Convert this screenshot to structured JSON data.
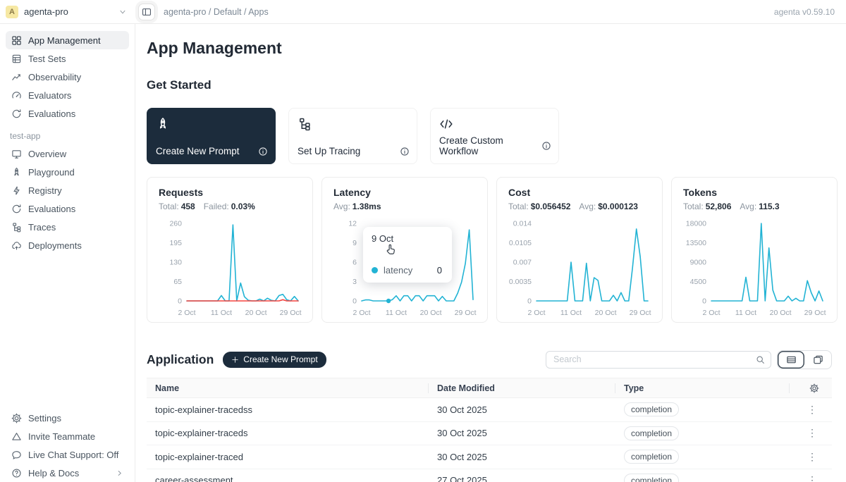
{
  "topbar": {
    "avatar_letter": "A",
    "workspace": "agenta-pro",
    "breadcrumb": "agenta-pro / Default / Apps",
    "version": "agenta v0.59.10"
  },
  "sidebar": {
    "main_items": [
      {
        "label": "App Management",
        "icon": "grid",
        "active": true
      },
      {
        "label": "Test Sets",
        "icon": "testsets",
        "active": false
      },
      {
        "label": "Observability",
        "icon": "observability",
        "active": false
      },
      {
        "label": "Evaluators",
        "icon": "gauge",
        "active": false
      },
      {
        "label": "Evaluations",
        "icon": "refresh",
        "active": false
      }
    ],
    "section_label": "test-app",
    "app_items": [
      {
        "label": "Overview",
        "icon": "desktop",
        "active": false
      },
      {
        "label": "Playground",
        "icon": "rocket",
        "active": false
      },
      {
        "label": "Registry",
        "icon": "lightning",
        "active": false
      },
      {
        "label": "Evaluations",
        "icon": "refresh",
        "active": false
      },
      {
        "label": "Traces",
        "icon": "tree",
        "active": false
      },
      {
        "label": "Deployments",
        "icon": "cloud",
        "active": false
      }
    ],
    "bottom_items": [
      {
        "label": "Settings",
        "icon": "gear",
        "active": false
      },
      {
        "label": "Invite Teammate",
        "icon": "triangle",
        "active": false
      },
      {
        "label": "Live Chat Support: Off",
        "icon": "chat",
        "active": false
      },
      {
        "label": "Help & Docs",
        "icon": "help",
        "active": false,
        "chevron": true
      }
    ]
  },
  "main": {
    "page_title": "App Management",
    "get_started": {
      "title": "Get Started",
      "cards": [
        {
          "label": "Create New Prompt",
          "icon": "rocket",
          "dark": true
        },
        {
          "label": "Set Up Tracing",
          "icon": "tree",
          "dark": false
        },
        {
          "label": "Create Custom Workflow",
          "icon": "code",
          "dark": false
        }
      ]
    },
    "application": {
      "title": "Application",
      "create_button_label": "Create New Prompt",
      "search_placeholder": "Search",
      "table": {
        "columns": [
          "Name",
          "Date Modified",
          "Type"
        ],
        "rows": [
          {
            "name": "topic-explainer-tracedss",
            "date_modified": "30 Oct 2025",
            "type": "completion"
          },
          {
            "name": "topic-explainer-traceds",
            "date_modified": "30 Oct 2025",
            "type": "completion"
          },
          {
            "name": "topic-explainer-traced",
            "date_modified": "30 Oct 2025",
            "type": "completion"
          },
          {
            "name": "career-assessment",
            "date_modified": "27 Oct 2025",
            "type": "completion"
          }
        ]
      }
    }
  },
  "tooltip": {
    "date": "9 Oct",
    "series_label": "latency",
    "value": "0"
  },
  "colors": {
    "accent_cyan": "#22b3d4",
    "failed_red": "#f5433e",
    "dark_navy": "#1c2c3c"
  },
  "chart_data": [
    {
      "type": "line",
      "title": "Requests",
      "stats": [
        {
          "label": "Total:",
          "value": "458"
        },
        {
          "label": "Failed:",
          "value": "0.03%"
        }
      ],
      "x": [
        "2 Oct",
        "3 Oct",
        "4 Oct",
        "5 Oct",
        "6 Oct",
        "7 Oct",
        "8 Oct",
        "9 Oct",
        "10 Oct",
        "11 Oct",
        "12 Oct",
        "13 Oct",
        "14 Oct",
        "15 Oct",
        "16 Oct",
        "17 Oct",
        "18 Oct",
        "19 Oct",
        "20 Oct",
        "21 Oct",
        "22 Oct",
        "23 Oct",
        "24 Oct",
        "25 Oct",
        "26 Oct",
        "27 Oct",
        "28 Oct",
        "29 Oct",
        "30 Oct",
        "31 Oct"
      ],
      "x_tick_indices": [
        0,
        9,
        18,
        27
      ],
      "x_tick_labels": [
        "2 Oct",
        "11 Oct",
        "20 Oct",
        "29 Oct"
      ],
      "ylim": [
        0,
        260
      ],
      "y_ticks": [
        {
          "v": 0,
          "label": "0"
        },
        {
          "v": 65,
          "label": "65"
        },
        {
          "v": 130,
          "label": "130"
        },
        {
          "v": 195,
          "label": "195"
        },
        {
          "v": 260,
          "label": "260"
        }
      ],
      "series": [
        {
          "name": "requests",
          "color": "#22b3d4",
          "values": [
            0,
            0,
            0,
            0,
            0,
            0,
            0,
            0,
            0,
            18,
            0,
            0,
            255,
            0,
            60,
            14,
            2,
            0,
            0,
            6,
            0,
            9,
            2,
            0,
            18,
            22,
            4,
            0,
            15,
            0
          ]
        },
        {
          "name": "failed",
          "color": "#f5433e",
          "values": [
            0,
            0,
            0,
            0,
            0,
            0,
            0,
            0,
            0,
            0,
            0,
            0,
            0,
            0,
            0,
            0,
            0,
            0,
            0,
            0,
            0,
            0,
            0,
            0,
            0,
            4,
            0,
            0,
            0,
            0
          ]
        }
      ]
    },
    {
      "type": "line",
      "title": "Latency",
      "stats": [
        {
          "label": "Avg:",
          "value": "1.38ms"
        }
      ],
      "x": [
        "2 Oct",
        "3 Oct",
        "4 Oct",
        "5 Oct",
        "6 Oct",
        "7 Oct",
        "8 Oct",
        "9 Oct",
        "10 Oct",
        "11 Oct",
        "12 Oct",
        "13 Oct",
        "14 Oct",
        "15 Oct",
        "16 Oct",
        "17 Oct",
        "18 Oct",
        "19 Oct",
        "20 Oct",
        "21 Oct",
        "22 Oct",
        "23 Oct",
        "24 Oct",
        "25 Oct",
        "26 Oct",
        "27 Oct",
        "28 Oct",
        "29 Oct",
        "30 Oct",
        "31 Oct"
      ],
      "x_tick_indices": [
        0,
        9,
        18,
        27
      ],
      "x_tick_labels": [
        "2 Oct",
        "11 Oct",
        "20 Oct",
        "29 Oct"
      ],
      "ylim": [
        0,
        12
      ],
      "y_ticks": [
        {
          "v": 0,
          "label": "0"
        },
        {
          "v": 3,
          "label": "3"
        },
        {
          "v": 6,
          "label": "6"
        },
        {
          "v": 9,
          "label": "9"
        },
        {
          "v": 12,
          "label": "12"
        }
      ],
      "series": [
        {
          "name": "latency",
          "color": "#22b3d4",
          "values": [
            0,
            0.15,
            0.15,
            0,
            0,
            0,
            0,
            0,
            0.2,
            0.8,
            0,
            0.8,
            0.8,
            0,
            0.8,
            0.8,
            0,
            0.8,
            0.8,
            0.8,
            0,
            0.7,
            0,
            0,
            0,
            1.2,
            2.9,
            5.8,
            11,
            0.2
          ]
        }
      ],
      "marker": {
        "x": "9 Oct",
        "index": 7,
        "value": 0
      }
    },
    {
      "type": "line",
      "title": "Cost",
      "stats": [
        {
          "label": "Total:",
          "value": "$0.056452"
        },
        {
          "label": "Avg:",
          "value": "$0.000123"
        }
      ],
      "x": [
        "2 Oct",
        "3 Oct",
        "4 Oct",
        "5 Oct",
        "6 Oct",
        "7 Oct",
        "8 Oct",
        "9 Oct",
        "10 Oct",
        "11 Oct",
        "12 Oct",
        "13 Oct",
        "14 Oct",
        "15 Oct",
        "16 Oct",
        "17 Oct",
        "18 Oct",
        "19 Oct",
        "20 Oct",
        "21 Oct",
        "22 Oct",
        "23 Oct",
        "24 Oct",
        "25 Oct",
        "26 Oct",
        "27 Oct",
        "28 Oct",
        "29 Oct",
        "30 Oct",
        "31 Oct"
      ],
      "x_tick_indices": [
        0,
        9,
        18,
        27
      ],
      "x_tick_labels": [
        "2 Oct",
        "11 Oct",
        "20 Oct",
        "29 Oct"
      ],
      "ylim": [
        0,
        0.014
      ],
      "y_ticks": [
        {
          "v": 0,
          "label": "0"
        },
        {
          "v": 0.0035,
          "label": "0.0035"
        },
        {
          "v": 0.007,
          "label": "0.007"
        },
        {
          "v": 0.0105,
          "label": "0.0105"
        },
        {
          "v": 0.014,
          "label": "0.014"
        }
      ],
      "series": [
        {
          "name": "cost",
          "color": "#22b3d4",
          "values": [
            0,
            0,
            0,
            0,
            0,
            0,
            0,
            0,
            0,
            0.007,
            0,
            0,
            0,
            0.0068,
            0,
            0.0042,
            0.0037,
            0,
            0,
            0,
            0.001,
            0,
            0.0015,
            0,
            0,
            0.006,
            0.013,
            0.008,
            0,
            0
          ]
        }
      ]
    },
    {
      "type": "line",
      "title": "Tokens",
      "stats": [
        {
          "label": "Total:",
          "value": "52,806"
        },
        {
          "label": "Avg:",
          "value": "115.3"
        }
      ],
      "x": [
        "2 Oct",
        "3 Oct",
        "4 Oct",
        "5 Oct",
        "6 Oct",
        "7 Oct",
        "8 Oct",
        "9 Oct",
        "10 Oct",
        "11 Oct",
        "12 Oct",
        "13 Oct",
        "14 Oct",
        "15 Oct",
        "16 Oct",
        "17 Oct",
        "18 Oct",
        "19 Oct",
        "20 Oct",
        "21 Oct",
        "22 Oct",
        "23 Oct",
        "24 Oct",
        "25 Oct",
        "26 Oct",
        "27 Oct",
        "28 Oct",
        "29 Oct",
        "30 Oct",
        "31 Oct"
      ],
      "x_tick_indices": [
        0,
        9,
        18,
        27
      ],
      "x_tick_labels": [
        "2 Oct",
        "11 Oct",
        "20 Oct",
        "29 Oct"
      ],
      "ylim": [
        0,
        18000
      ],
      "y_ticks": [
        {
          "v": 0,
          "label": "0"
        },
        {
          "v": 4500,
          "label": "4500"
        },
        {
          "v": 9000,
          "label": "9000"
        },
        {
          "v": 13500,
          "label": "13500"
        },
        {
          "v": 18000,
          "label": "18000"
        }
      ],
      "series": [
        {
          "name": "tokens",
          "color": "#22b3d4",
          "values": [
            0,
            0,
            0,
            0,
            0,
            0,
            0,
            0,
            0,
            5500,
            0,
            0,
            0,
            18000,
            0,
            12300,
            2500,
            0,
            0,
            0,
            1100,
            0,
            600,
            0,
            0,
            4700,
            1900,
            0,
            2300,
            0
          ]
        }
      ]
    }
  ]
}
